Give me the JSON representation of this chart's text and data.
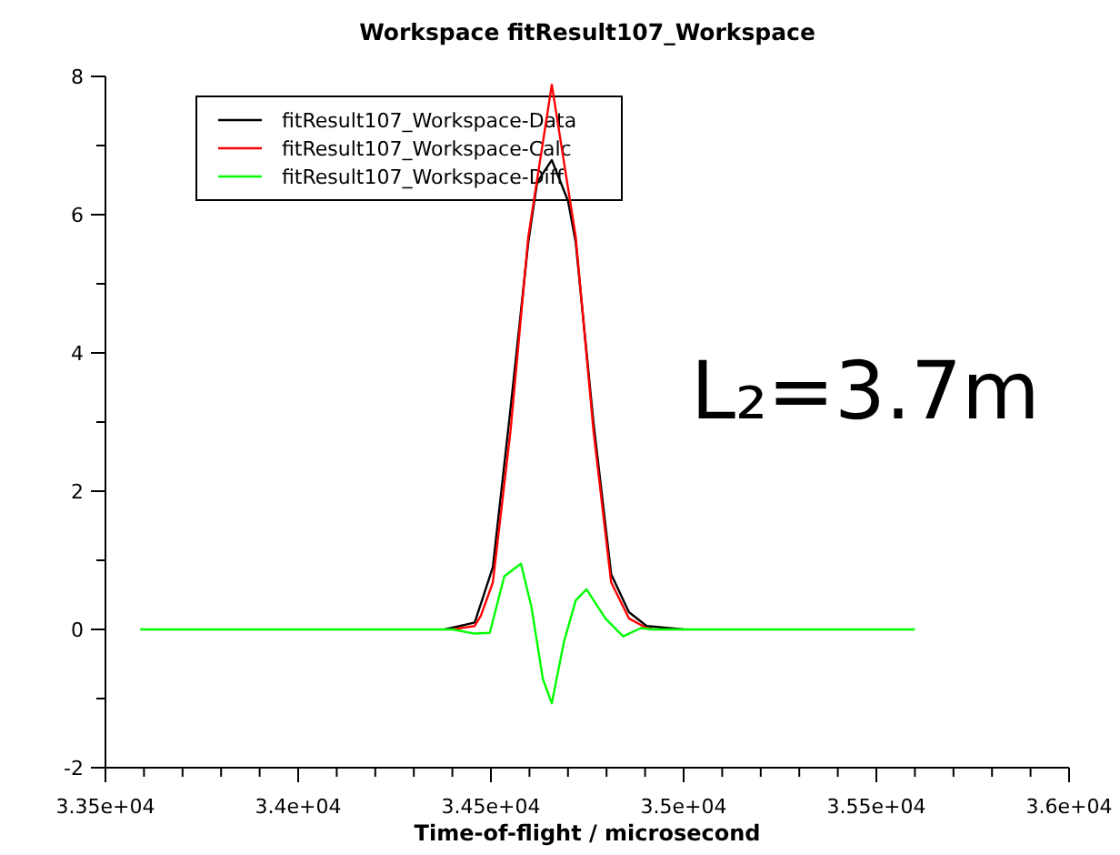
{
  "chart_data": {
    "type": "line",
    "title": "Workspace fitResult107_Workspace",
    "xlabel": "Time-of-flight / microsecond",
    "annotations": [
      "L₂=3.7m"
    ],
    "xlim": [
      33500,
      36000
    ],
    "xticks": [
      {
        "value": 33500,
        "label": "3.35e+04"
      },
      {
        "value": 33600,
        "label": null
      },
      {
        "value": 33700,
        "label": null
      },
      {
        "value": 33800,
        "label": null
      },
      {
        "value": 33900,
        "label": null
      },
      {
        "value": 34000,
        "label": "3.4e+04"
      },
      {
        "value": 34100,
        "label": null
      },
      {
        "value": 34200,
        "label": null
      },
      {
        "value": 34300,
        "label": null
      },
      {
        "value": 34400,
        "label": null
      },
      {
        "value": 34500,
        "label": "3.45e+04"
      },
      {
        "value": 34600,
        "label": null
      },
      {
        "value": 34700,
        "label": null
      },
      {
        "value": 34800,
        "label": null
      },
      {
        "value": 34900,
        "label": null
      },
      {
        "value": 35000,
        "label": "3.5e+04"
      },
      {
        "value": 35100,
        "label": null
      },
      {
        "value": 35200,
        "label": null
      },
      {
        "value": 35300,
        "label": null
      },
      {
        "value": 35400,
        "label": null
      },
      {
        "value": 35500,
        "label": "3.55e+04"
      },
      {
        "value": 35600,
        "label": null
      },
      {
        "value": 35700,
        "label": null
      },
      {
        "value": 35800,
        "label": null
      },
      {
        "value": 35900,
        "label": null
      },
      {
        "value": 36000,
        "label": "3.6e+04"
      }
    ],
    "ylim": [
      -2,
      8
    ],
    "yticks": [
      -2,
      {
        "value": -1,
        "label": null
      },
      0,
      {
        "value": 1,
        "label": null
      },
      2,
      {
        "value": 3,
        "label": null
      },
      4,
      {
        "value": 5,
        "label": null
      },
      6,
      {
        "value": 7,
        "label": null
      },
      8
    ],
    "grid": false,
    "legend": "top left",
    "marker": "none",
    "line_style": "solid",
    "series": [
      {
        "name": "fitResult107_Workspace-Data",
        "color": "#000000",
        "x": [
          34380,
          34458,
          34505,
          34551,
          34597,
          34620,
          34658,
          34700,
          34720,
          34766,
          34812,
          34858,
          34904,
          35000
        ],
        "values": [
          0,
          0.1,
          0.9,
          3.2,
          5.6,
          6.47,
          6.79,
          6.2,
          5.6,
          3.0,
          0.8,
          0.25,
          0.05,
          0
        ]
      },
      {
        "name": "fitResult107_Workspace-Calc",
        "color": "#ff0000",
        "x": [
          34400,
          34458,
          34474,
          34505,
          34551,
          34597,
          34658,
          34720,
          34766,
          34812,
          34858,
          34904,
          34920
        ],
        "values": [
          0,
          0.05,
          0.2,
          0.68,
          2.88,
          5.68,
          7.88,
          5.68,
          2.88,
          0.68,
          0.16,
          0.02,
          0
        ]
      },
      {
        "name": "fitResult107_Workspace-Diff",
        "color": "#00ff00",
        "x": [
          33590,
          34400,
          34458,
          34497,
          34535,
          34578,
          34605,
          34635,
          34658,
          34689,
          34720,
          34748,
          34797,
          34843,
          34889,
          34920,
          35600
        ],
        "values": [
          0,
          0,
          -0.06,
          -0.05,
          0.77,
          0.95,
          0.33,
          -0.72,
          -1.07,
          -0.19,
          0.42,
          0.58,
          0.16,
          -0.1,
          0.02,
          0,
          0
        ]
      }
    ]
  }
}
